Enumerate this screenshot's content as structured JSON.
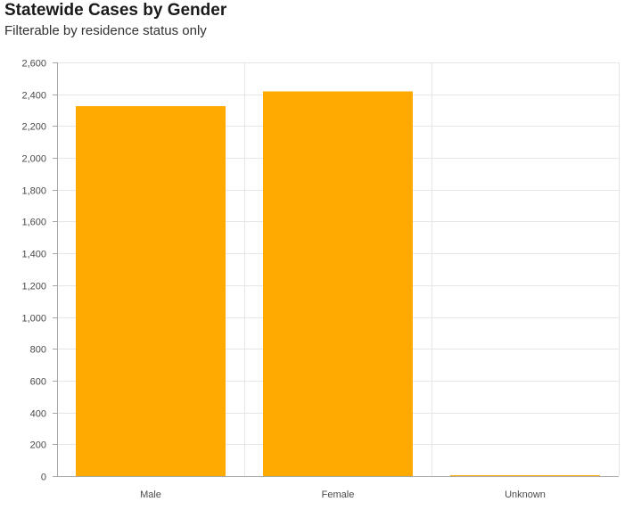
{
  "header": {
    "title": "Statewide Cases by Gender",
    "subtitle": "Filterable by residence status only"
  },
  "colors": {
    "bar": "#ffaa00",
    "grid": "#e6e6e6",
    "axis": "#a8a8a8"
  },
  "chart_data": {
    "type": "bar",
    "title": "Statewide Cases by Gender",
    "subtitle": "Filterable by residence status only",
    "xlabel": "",
    "ylabel": "",
    "categories": [
      "Male",
      "Female",
      "Unknown"
    ],
    "values": [
      2325,
      2418,
      3
    ],
    "ylim": [
      0,
      2600
    ],
    "yticks": [
      0,
      200,
      400,
      600,
      800,
      1000,
      1200,
      1400,
      1600,
      1800,
      2000,
      2200,
      2400,
      2600
    ],
    "ytick_labels": [
      "0",
      "200",
      "400",
      "600",
      "800",
      "1,000",
      "1,200",
      "1,400",
      "1,600",
      "1,800",
      "2,000",
      "2,200",
      "2,400",
      "2,600"
    ],
    "grid": true,
    "legend": "none"
  }
}
